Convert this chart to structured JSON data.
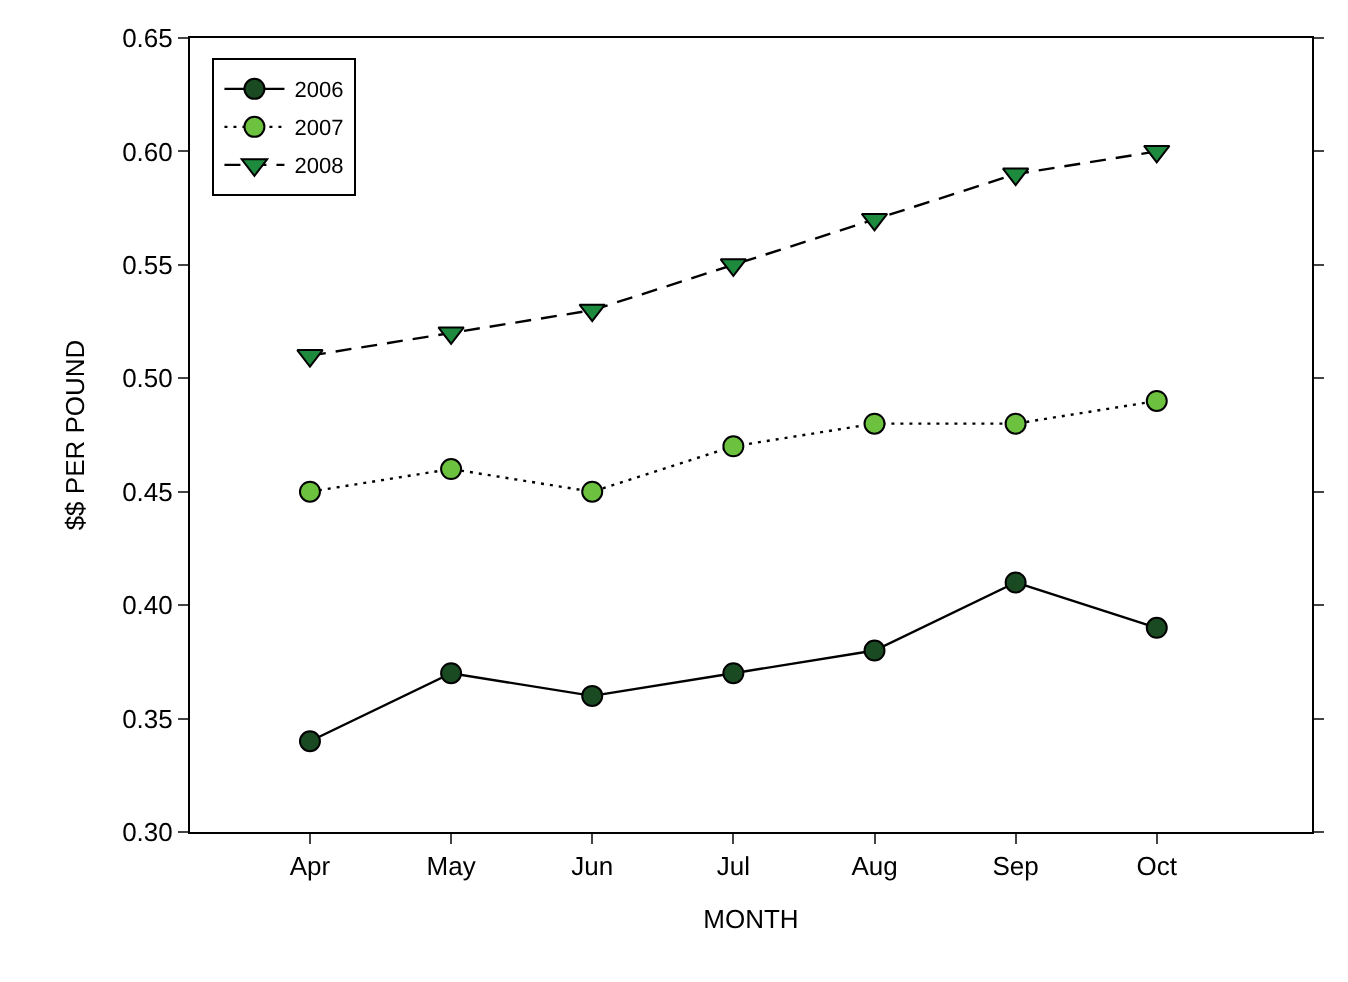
{
  "chart_data": {
    "type": "line",
    "xlabel": "MONTH",
    "ylabel": "$$ PER POUND",
    "categories": [
      "Apr",
      "May",
      "Jun",
      "Jul",
      "Aug",
      "Sep",
      "Oct"
    ],
    "series": [
      {
        "name": "2006",
        "color": "#1a4a22",
        "marker": "circle",
        "line_style": "solid",
        "values": [
          0.34,
          0.37,
          0.36,
          0.37,
          0.38,
          0.41,
          0.39
        ]
      },
      {
        "name": "2007",
        "color": "#6cc23f",
        "marker": "circle",
        "line_style": "dotted",
        "values": [
          0.45,
          0.46,
          0.45,
          0.47,
          0.48,
          0.48,
          0.49
        ]
      },
      {
        "name": "2008",
        "color": "#1e8a3e",
        "marker": "triangle",
        "line_style": "dashed",
        "values": [
          0.51,
          0.52,
          0.53,
          0.55,
          0.57,
          0.59,
          0.6
        ]
      }
    ],
    "ylim": [
      0.3,
      0.65
    ],
    "yticks": [
      {
        "value": 0.3,
        "label": "0.30"
      },
      {
        "value": 0.35,
        "label": "0.35"
      },
      {
        "value": 0.4,
        "label": "0.40"
      },
      {
        "value": 0.45,
        "label": "0.45"
      },
      {
        "value": 0.5,
        "label": "0.50"
      },
      {
        "value": 0.55,
        "label": "0.55"
      },
      {
        "value": 0.6,
        "label": "0.60"
      },
      {
        "value": 0.65,
        "label": "0.65"
      }
    ],
    "legend": "top left"
  }
}
